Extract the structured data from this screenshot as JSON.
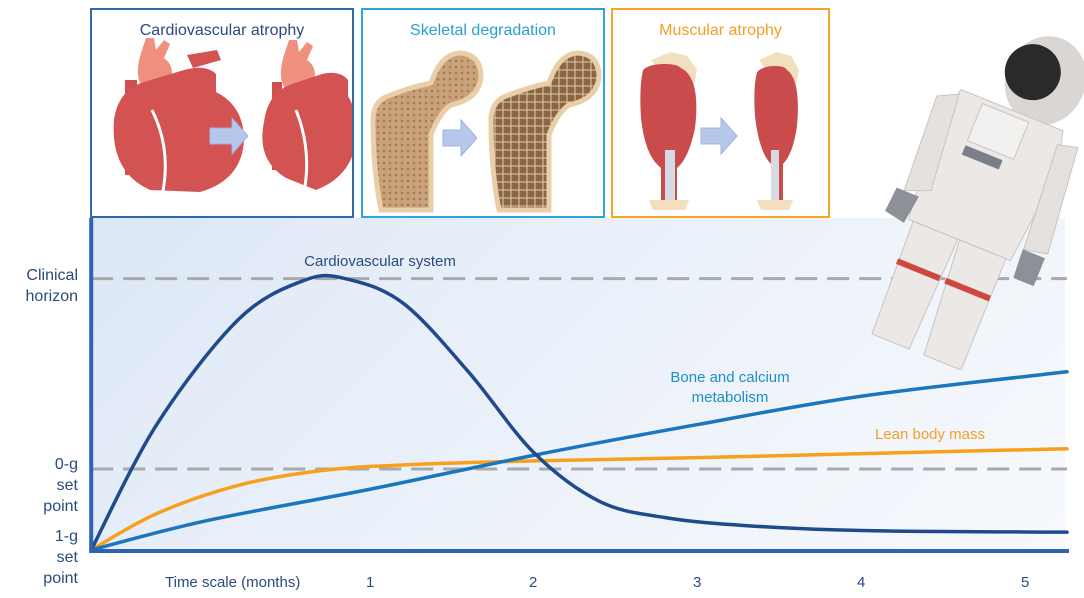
{
  "panels": [
    {
      "title": "Cardiovascular atrophy",
      "color": "#2e5f9e",
      "icon": "heart-icon"
    },
    {
      "title": "Skeletal degradation",
      "color": "#29a3d6",
      "icon": "femur-bone-icon"
    },
    {
      "title": "Muscular atrophy",
      "color": "#f5a623",
      "icon": "calf-muscle-icon"
    }
  ],
  "illustration": {
    "name": "floating astronaut"
  },
  "chart_data": {
    "type": "line",
    "title": "",
    "xlabel": "Time scale (months)",
    "ylabel": "",
    "x_ticks": [
      "1",
      "2",
      "3",
      "4",
      "5"
    ],
    "x_range": [
      -0.7,
      5.25
    ],
    "y_levels": [
      {
        "label": "Clinical horizon",
        "value": 3.35,
        "style": "dashed"
      },
      {
        "label": "0-g set point",
        "value": 1.0,
        "style": "dashed"
      },
      {
        "label": "1-g set point",
        "value": 0.0,
        "style": "axis"
      }
    ],
    "y_range": [
      0,
      4.1
    ],
    "grid": false,
    "series": [
      {
        "name": "Cardiovascular system",
        "color": "#1f4a8c",
        "x": [
          -0.7,
          -0.3,
          0.2,
          0.6,
          0.85,
          1.2,
          1.6,
          2.0,
          2.4,
          2.8,
          3.3,
          4.0,
          5.25
        ],
        "y": [
          0.0,
          1.55,
          2.85,
          3.33,
          3.35,
          3.05,
          2.2,
          1.2,
          0.6,
          0.4,
          0.3,
          0.24,
          0.22
        ]
      },
      {
        "name": "Bone and calcium metabolism",
        "color": "#1b76bd",
        "x": [
          -0.7,
          0.0,
          1.0,
          2.0,
          3.0,
          4.0,
          5.25
        ],
        "y": [
          0.0,
          0.36,
          0.75,
          1.17,
          1.55,
          1.9,
          2.2
        ]
      },
      {
        "name": "Lean body mass",
        "color": "#f7a01c",
        "x": [
          -0.7,
          -0.3,
          0.2,
          0.7,
          1.2,
          2.0,
          3.0,
          4.0,
          5.25
        ],
        "y": [
          0.0,
          0.45,
          0.8,
          0.98,
          1.05,
          1.1,
          1.14,
          1.19,
          1.25
        ]
      }
    ],
    "annotations": [
      {
        "text": "Cardiovascular system",
        "color": "#2b4a7e"
      },
      {
        "text": "Bone and calcium metabolism",
        "color": "#1b8fc6"
      },
      {
        "text": "Lean body mass",
        "color": "#f5a024"
      }
    ]
  }
}
